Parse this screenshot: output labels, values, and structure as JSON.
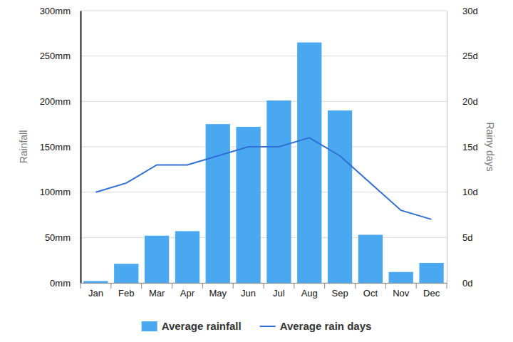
{
  "chart_data": {
    "type": "bar",
    "categories": [
      "Jan",
      "Feb",
      "Mar",
      "Apr",
      "May",
      "Jun",
      "Jul",
      "Aug",
      "Sep",
      "Oct",
      "Nov",
      "Dec"
    ],
    "series": [
      {
        "name": "Average rainfall",
        "type": "bar",
        "color": "#4aa8f0",
        "axis": "y",
        "values": [
          2,
          21,
          52,
          57,
          175,
          172,
          201,
          265,
          190,
          53,
          12,
          22
        ]
      },
      {
        "name": "Average rain days",
        "type": "line",
        "color": "#2f6fd6",
        "axis": "y2",
        "values": [
          10,
          11,
          13,
          13,
          14,
          15,
          15,
          16,
          14,
          11,
          8,
          7
        ]
      }
    ],
    "y_label": "Rainfall",
    "y2_label": "Rainy days",
    "ylim": [
      0,
      300
    ],
    "yticks": [
      {
        "value": 0,
        "label": "0mm"
      },
      {
        "value": 50,
        "label": "50mm"
      },
      {
        "value": 100,
        "label": "100mm"
      },
      {
        "value": 150,
        "label": "150mm"
      },
      {
        "value": 200,
        "label": "200mm"
      },
      {
        "value": 250,
        "label": "250mm"
      },
      {
        "value": 300,
        "label": "300mm"
      }
    ],
    "y2lim": [
      0,
      30
    ],
    "y2ticks": [
      {
        "value": 0,
        "label": "0d"
      },
      {
        "value": 5,
        "label": "5d"
      },
      {
        "value": 10,
        "label": "10d"
      },
      {
        "value": 15,
        "label": "15d"
      },
      {
        "value": 20,
        "label": "20d"
      },
      {
        "value": 25,
        "label": "25d"
      },
      {
        "value": 30,
        "label": "30d"
      }
    ],
    "grid": true,
    "legend": "bottom"
  }
}
